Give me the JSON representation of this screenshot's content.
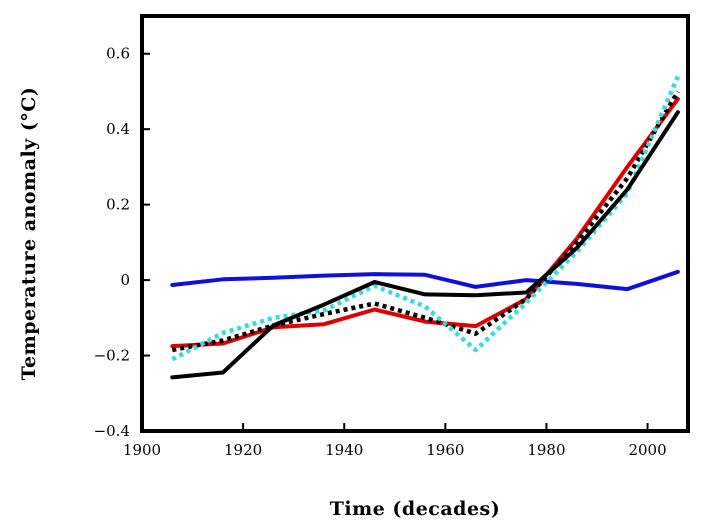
{
  "chart_data": {
    "type": "line",
    "title": "",
    "xlabel": "Time (decades)",
    "ylabel": "Temperature anomaly  (°C)",
    "xlim": [
      1900,
      2008
    ],
    "ylim": [
      -0.4,
      0.7
    ],
    "x_ticks": [
      1900,
      1920,
      1940,
      1960,
      1980,
      2000
    ],
    "y_ticks": [
      -0.4,
      -0.2,
      0,
      0.2,
      0.4,
      0.6
    ],
    "x_tick_labels": [
      "1900",
      "1920",
      "1940",
      "1960",
      "1980",
      "2000"
    ],
    "y_tick_labels": [
      "−0.4",
      "−0.2",
      "0",
      "0.2",
      "0.4",
      "0.6"
    ],
    "grid": false,
    "legend": "none",
    "x": [
      1906,
      1916,
      1926,
      1936,
      1946,
      1956,
      1966,
      1976,
      1986,
      1996,
      2006
    ],
    "series": [
      {
        "color": "#1010dd",
        "style": "solid",
        "values": [
          -0.013,
          0.002,
          0.006,
          0.012,
          0.016,
          0.014,
          -0.018,
          0.0,
          -0.01,
          -0.024,
          0.022
        ]
      },
      {
        "color": "#e00000",
        "style": "solid",
        "values": [
          -0.175,
          -0.168,
          -0.125,
          -0.117,
          -0.078,
          -0.11,
          -0.122,
          -0.05,
          0.11,
          0.3,
          0.48
        ]
      },
      {
        "color": "#000000",
        "style": "dotted",
        "values": [
          -0.185,
          -0.16,
          -0.12,
          -0.09,
          -0.062,
          -0.1,
          -0.142,
          -0.05,
          0.1,
          0.27,
          0.5
        ]
      },
      {
        "color": "#33dddd",
        "style": "dotted",
        "values": [
          -0.21,
          -0.14,
          -0.1,
          -0.08,
          -0.015,
          -0.07,
          -0.185,
          -0.06,
          0.075,
          0.23,
          0.54
        ]
      },
      {
        "color": "#000000",
        "style": "solid",
        "values": [
          -0.258,
          -0.245,
          -0.12,
          -0.065,
          -0.005,
          -0.038,
          -0.04,
          -0.033,
          0.085,
          0.24,
          0.445
        ]
      }
    ]
  }
}
